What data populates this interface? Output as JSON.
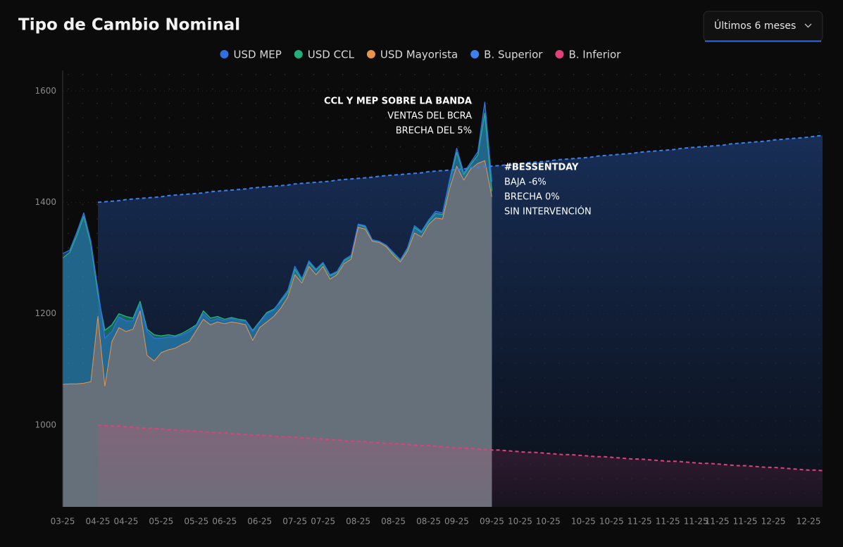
{
  "chart_data": {
    "type": "area",
    "title": "Tipo de Cambio Nominal",
    "categories": [
      "03-25",
      null,
      null,
      null,
      null,
      "04-25",
      null,
      null,
      null,
      "04-25",
      null,
      null,
      null,
      null,
      "05-25",
      null,
      null,
      null,
      null,
      "05-25",
      null,
      null,
      null,
      "06-25",
      null,
      null,
      null,
      null,
      "06-25",
      null,
      null,
      null,
      null,
      "07-25",
      null,
      null,
      null,
      "07-25",
      null,
      null,
      null,
      null,
      "08-25",
      null,
      null,
      null,
      null,
      "08-25",
      null,
      null,
      null,
      null,
      "08-25",
      null,
      null,
      null,
      "09-25",
      null,
      null,
      null,
      null,
      "09-25",
      null,
      null,
      null,
      "10-25",
      null,
      null,
      null,
      "10-25",
      null,
      null,
      null,
      null,
      "10-25",
      null,
      null,
      null,
      "10-25",
      null,
      null,
      null,
      "11-25",
      null,
      null,
      null,
      "11-25",
      null,
      null,
      null,
      "11-25",
      null,
      null,
      "11-25",
      null,
      null,
      null,
      "11-25",
      null,
      null,
      null,
      "12-25",
      null,
      null,
      null,
      null,
      "12-25",
      null,
      null
    ],
    "series": [
      {
        "name": "USD MEP",
        "color": "#2f6fe0",
        "values": [
          1308,
          1314,
          1346,
          1381,
          1330,
          1244,
          1156,
          1168,
          1194,
          1187,
          1187,
          1216,
          1168,
          1156,
          1156,
          1158,
          1158,
          1162,
          1168,
          1178,
          1200,
          1187,
          1191,
          1187,
          1191,
          1187,
          1187,
          1168,
          1184,
          1200,
          1206,
          1225,
          1242,
          1285,
          1263,
          1295,
          1280,
          1292,
          1270,
          1276,
          1297,
          1305,
          1361,
          1358,
          1333,
          1330,
          1323,
          1310,
          1297,
          1318,
          1358,
          1348,
          1368,
          1384,
          1381,
          1441,
          1497,
          1453,
          1472,
          1491,
          1580,
          1437,
          null,
          null,
          null,
          null,
          null,
          null,
          null,
          null,
          null,
          null,
          null,
          null,
          null,
          null,
          null,
          null,
          null,
          null,
          null,
          null,
          null,
          null,
          null,
          null,
          null,
          null,
          null,
          null,
          null,
          null,
          null,
          null,
          null,
          null,
          null,
          null,
          null,
          null,
          null,
          null,
          null,
          null,
          null,
          null,
          null,
          null,
          null
        ]
      },
      {
        "name": "USD CCL",
        "color": "#22b07f",
        "values": [
          1300,
          1310,
          1340,
          1375,
          1325,
          1235,
          1170,
          1180,
          1200,
          1195,
          1192,
          1222,
          1172,
          1162,
          1160,
          1162,
          1160,
          1165,
          1172,
          1180,
          1205,
          1192,
          1195,
          1190,
          1193,
          1190,
          1188,
          1170,
          1186,
          1202,
          1208,
          1222,
          1238,
          1280,
          1260,
          1292,
          1278,
          1290,
          1268,
          1274,
          1295,
          1302,
          1360,
          1356,
          1332,
          1330,
          1322,
          1308,
          1296,
          1316,
          1355,
          1346,
          1365,
          1380,
          1378,
          1438,
          1490,
          1450,
          1468,
          1485,
          1560,
          1420,
          null,
          null,
          null,
          null,
          null,
          null,
          null,
          null,
          null,
          null,
          null,
          null,
          null,
          null,
          null,
          null,
          null,
          null,
          null,
          null,
          null,
          null,
          null,
          null,
          null,
          null,
          null,
          null,
          null,
          null,
          null,
          null,
          null,
          null,
          null,
          null,
          null,
          null,
          null,
          null,
          null,
          null,
          null,
          null,
          null,
          null,
          null
        ]
      },
      {
        "name": "USD Mayorista",
        "color": "#e8954a",
        "values": [
          1073,
          1074,
          1074,
          1075,
          1078,
          1195,
          1070,
          1150,
          1175,
          1168,
          1172,
          1205,
          1125,
          1115,
          1130,
          1135,
          1138,
          1145,
          1150,
          1170,
          1190,
          1180,
          1185,
          1182,
          1185,
          1183,
          1180,
          1152,
          1175,
          1185,
          1195,
          1210,
          1230,
          1270,
          1255,
          1285,
          1270,
          1285,
          1262,
          1270,
          1290,
          1298,
          1355,
          1352,
          1330,
          1328,
          1320,
          1305,
          1293,
          1312,
          1345,
          1338,
          1360,
          1372,
          1370,
          1425,
          1465,
          1440,
          1460,
          1470,
          1475,
          1410,
          null,
          null,
          null,
          null,
          null,
          null,
          null,
          null,
          null,
          null,
          null,
          null,
          null,
          null,
          null,
          null,
          null,
          null,
          null,
          null,
          null,
          null,
          null,
          null,
          null,
          null,
          null,
          null,
          null,
          null,
          null,
          null,
          null,
          null,
          null,
          null,
          null,
          null,
          null,
          null,
          null,
          null,
          null,
          null,
          null,
          null,
          null
        ]
      },
      {
        "name": "B. Superior",
        "color": "#3b7ff0",
        "dashed": true,
        "values": [
          null,
          null,
          null,
          null,
          null,
          1400,
          1401,
          1402,
          1403,
          1405,
          1406,
          1407,
          1408,
          1409,
          1410,
          1412,
          1413,
          1414,
          1415,
          1416,
          1417,
          1419,
          1420,
          1421,
          1422,
          1423,
          1424,
          1426,
          1427,
          1428,
          1429,
          1430,
          1431,
          1433,
          1434,
          1435,
          1436,
          1437,
          1438,
          1440,
          1441,
          1442,
          1443,
          1444,
          1445,
          1447,
          1448,
          1449,
          1450,
          1451,
          1452,
          1453,
          1455,
          1456,
          1457,
          1458,
          1459,
          1460,
          1462,
          1463,
          1464,
          1465,
          1466,
          1467,
          1469,
          1470,
          1471,
          1472,
          1473,
          1474,
          1476,
          1477,
          1478,
          1479,
          1480,
          1481,
          1483,
          1484,
          1485,
          1486,
          1487,
          1488,
          1490,
          1491,
          1492,
          1493,
          1494,
          1495,
          1497,
          1498,
          1499,
          1500,
          1501,
          1502,
          1503,
          1505,
          1506,
          1507,
          1508,
          1509,
          1510,
          1512,
          1513,
          1514,
          1515,
          1516,
          1517,
          1519,
          1520
        ]
      },
      {
        "name": "B. Inferior",
        "color": "#e2407a",
        "dashed": true,
        "values": [
          null,
          null,
          null,
          null,
          null,
          1000,
          999,
          998,
          998,
          997,
          996,
          995,
          994,
          994,
          993,
          992,
          991,
          990,
          990,
          989,
          988,
          987,
          986,
          986,
          985,
          984,
          983,
          982,
          982,
          981,
          980,
          979,
          979,
          978,
          977,
          976,
          975,
          975,
          974,
          973,
          972,
          971,
          971,
          970,
          969,
          968,
          967,
          967,
          966,
          965,
          964,
          963,
          963,
          962,
          961,
          960,
          959,
          959,
          958,
          957,
          956,
          955,
          955,
          954,
          953,
          952,
          951,
          951,
          950,
          949,
          948,
          947,
          947,
          946,
          945,
          944,
          943,
          943,
          942,
          941,
          940,
          939,
          939,
          938,
          937,
          936,
          935,
          935,
          934,
          933,
          932,
          931,
          931,
          930,
          929,
          928,
          927,
          927,
          926,
          925,
          924,
          924,
          923,
          922,
          921,
          920,
          919,
          919,
          918
        ]
      }
    ],
    "ylim": [
      853,
      1637
    ],
    "yticks": [
      1000,
      1200,
      1400,
      1600
    ],
    "grid": true,
    "legend": "top",
    "annotations": [
      {
        "lines": [
          "CCL Y MEP SOBRE LA BANDA",
          "VENTAS DEL BCRA",
          "BRECHA DEL 5%"
        ]
      },
      {
        "lines": [
          "#BESSENTDAY",
          "BAJA -6%",
          "BRECHA 0%",
          "SIN INTERVENCIÓN"
        ]
      }
    ]
  },
  "controls": {
    "range": "Últimos 6 meses"
  }
}
